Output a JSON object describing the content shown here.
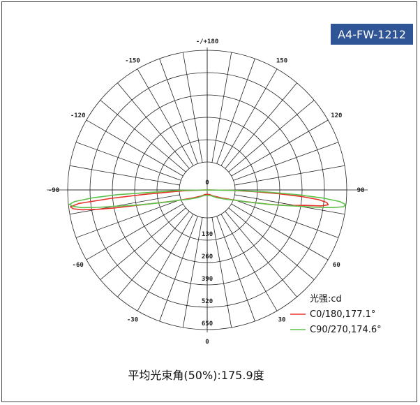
{
  "badge": {
    "label": "A4-FW-1212",
    "color": "#2f5597"
  },
  "footer": {
    "beam_angle_text": "平均光束角(50%):175.9度"
  },
  "chart_data": {
    "type": "polar-intensity",
    "angle_labels": [
      {
        "label": "-/+180",
        "angle": 180
      },
      {
        "label": "150",
        "angle": 150
      },
      {
        "label": "120",
        "angle": 120
      },
      {
        "label": "90",
        "angle": 90
      },
      {
        "label": "60",
        "angle": 60
      },
      {
        "label": "30",
        "angle": 30
      },
      {
        "label": "0",
        "angle": 0
      },
      {
        "label": "-30",
        "angle": -30
      },
      {
        "label": "-60",
        "angle": -60
      },
      {
        "label": "-90",
        "angle": -90
      },
      {
        "label": "-120",
        "angle": -120
      },
      {
        "label": "-150",
        "angle": -150
      }
    ],
    "radial_labels": [
      "130",
      "260",
      "390",
      "520",
      "650"
    ],
    "radial_values": [
      130,
      260,
      390,
      520,
      650
    ],
    "center_label": "0",
    "r_max": 650,
    "legend_title": "光强:cd",
    "series": [
      {
        "name": "C0/180,177.1°",
        "color": "#e8302a",
        "points": [
          [
            -88,
            110
          ],
          [
            -86,
            292
          ],
          [
            -85,
            448
          ],
          [
            -84,
            600
          ],
          [
            -83,
            642
          ],
          [
            -82,
            630
          ],
          [
            -81,
            590
          ],
          [
            -80,
            520
          ],
          [
            -79,
            440
          ],
          [
            -78,
            360
          ],
          [
            -77,
            300
          ],
          [
            -75,
            230
          ],
          [
            -72,
            170
          ],
          [
            -68,
            120
          ],
          [
            -60,
            72
          ],
          [
            -45,
            40
          ],
          [
            -30,
            25
          ],
          [
            0,
            20
          ],
          [
            30,
            25
          ],
          [
            45,
            40
          ],
          [
            60,
            72
          ],
          [
            68,
            120
          ],
          [
            72,
            170
          ],
          [
            75,
            230
          ],
          [
            77,
            300
          ],
          [
            79,
            380
          ],
          [
            81,
            460
          ],
          [
            82,
            535
          ],
          [
            83,
            568
          ],
          [
            84,
            560
          ],
          [
            85,
            520
          ],
          [
            86,
            440
          ],
          [
            87,
            330
          ],
          [
            88,
            220
          ],
          [
            89,
            100
          ]
        ]
      },
      {
        "name": "C90/270,174.6°",
        "color": "#5cc24a",
        "points": [
          [
            -89,
            130
          ],
          [
            -87,
            420
          ],
          [
            -86,
            540
          ],
          [
            -85,
            620
          ],
          [
            -84,
            645
          ],
          [
            -83,
            630
          ],
          [
            -82,
            590
          ],
          [
            -81,
            520
          ],
          [
            -80,
            440
          ],
          [
            -78,
            340
          ],
          [
            -76,
            260
          ],
          [
            -73,
            190
          ],
          [
            -70,
            140
          ],
          [
            -64,
            100
          ],
          [
            -50,
            55
          ],
          [
            -30,
            30
          ],
          [
            0,
            25
          ],
          [
            30,
            30
          ],
          [
            50,
            55
          ],
          [
            64,
            100
          ],
          [
            70,
            140
          ],
          [
            73,
            190
          ],
          [
            76,
            260
          ],
          [
            78,
            340
          ],
          [
            80,
            440
          ],
          [
            81,
            520
          ],
          [
            82,
            590
          ],
          [
            83,
            640
          ],
          [
            84,
            648
          ],
          [
            85,
            620
          ],
          [
            86,
            540
          ],
          [
            87,
            420
          ],
          [
            88,
            280
          ],
          [
            89,
            130
          ]
        ]
      }
    ]
  }
}
